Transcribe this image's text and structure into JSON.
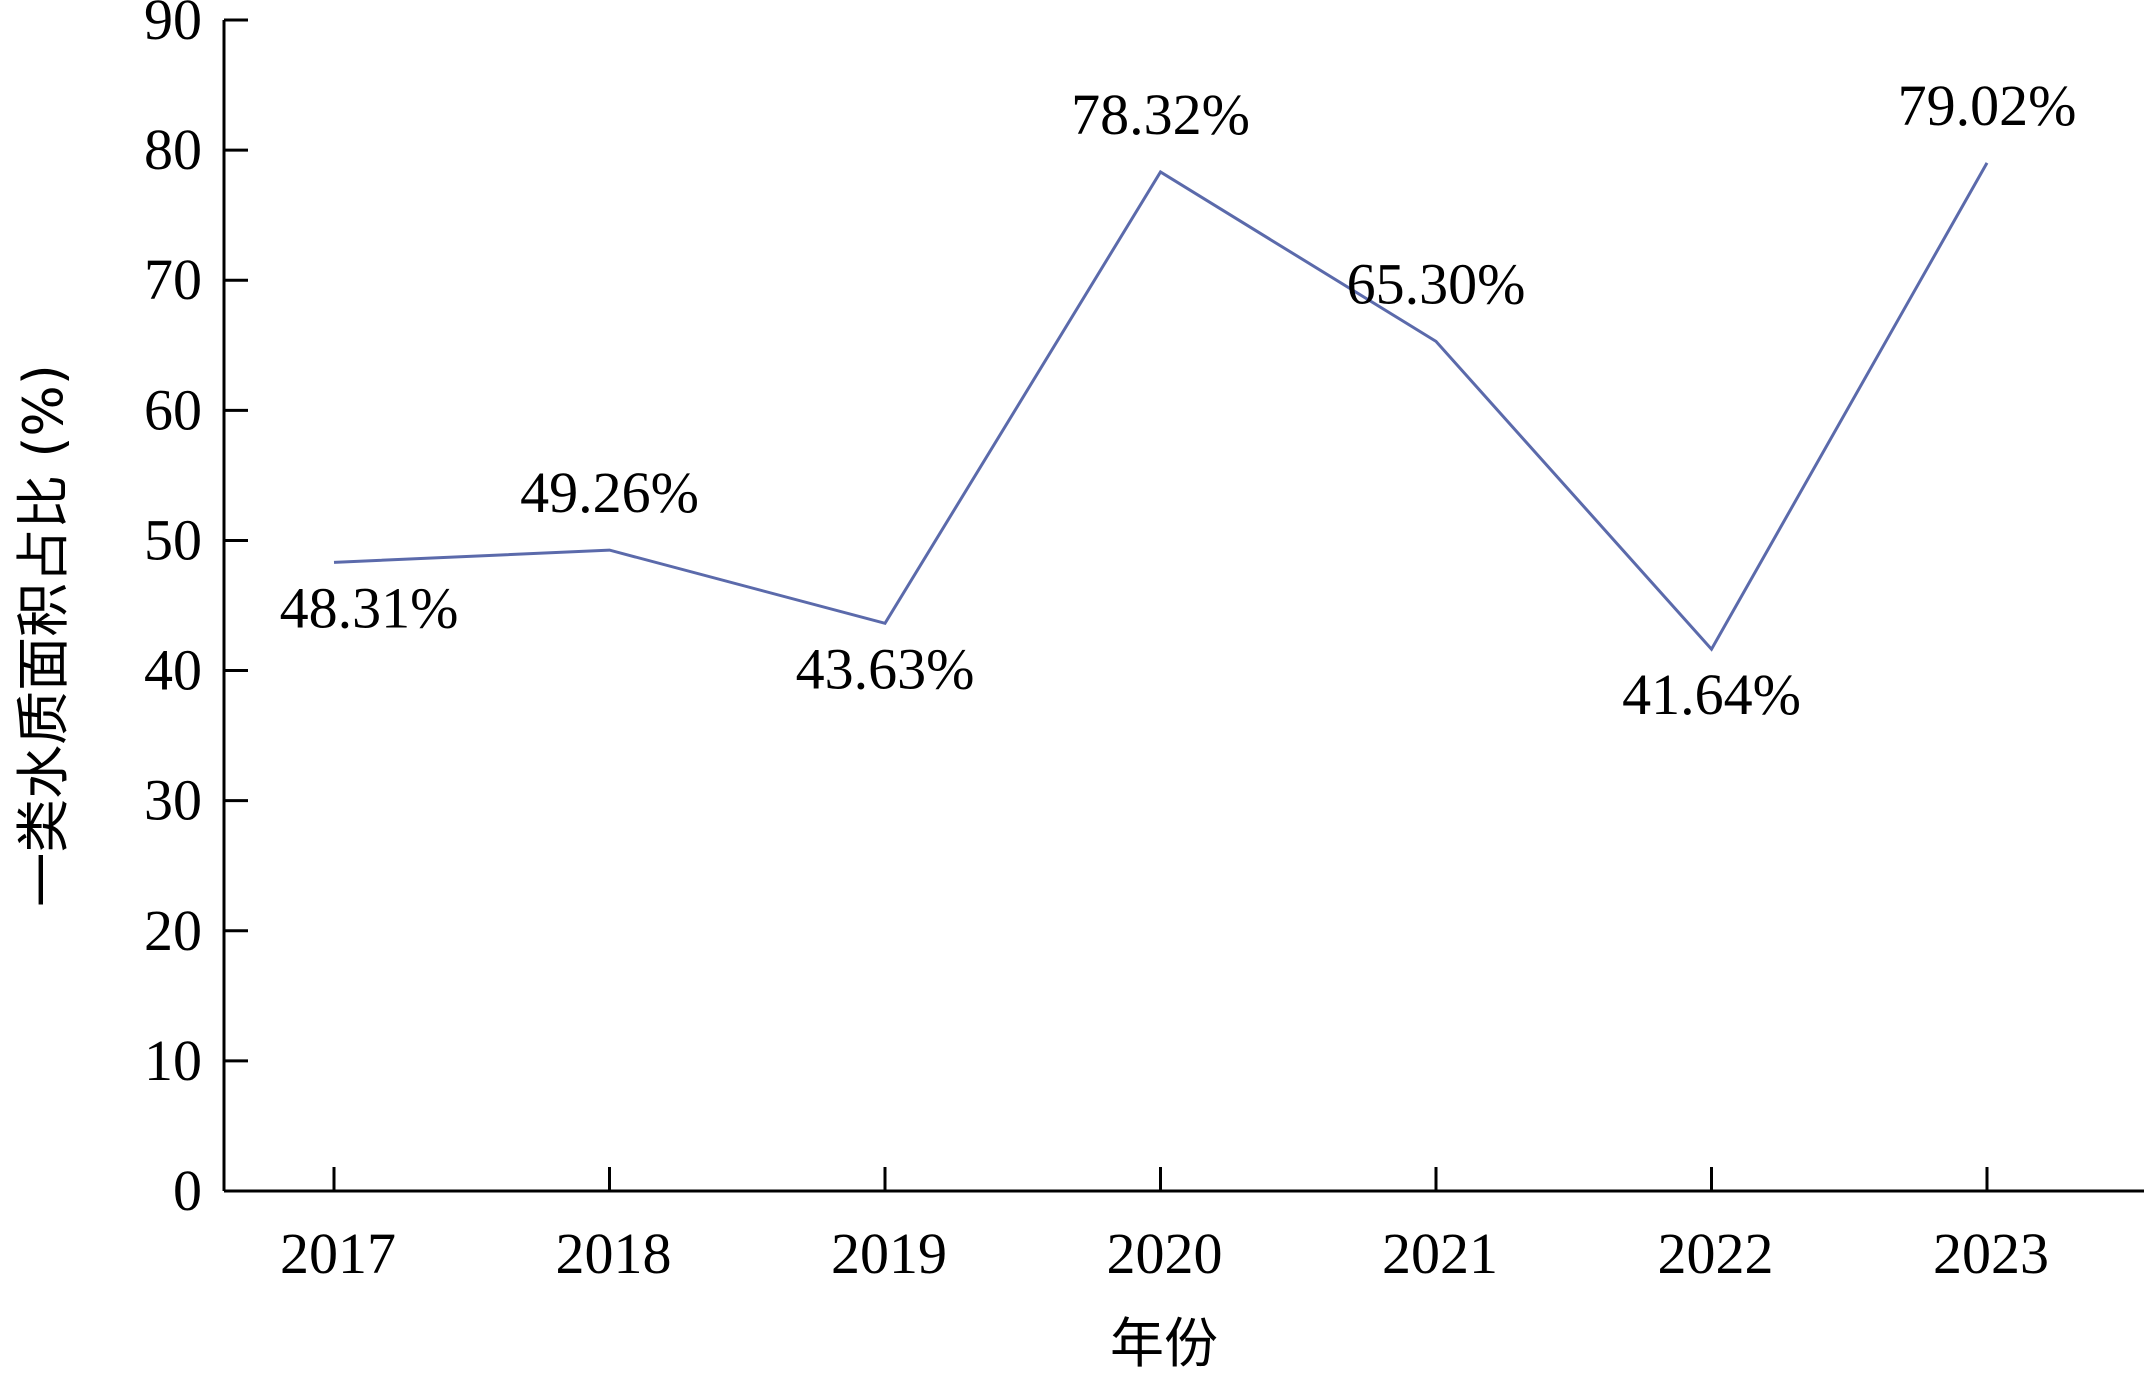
{
  "chart_data": {
    "type": "line",
    "title": "",
    "xlabel": "年份",
    "ylabel": "一类水质面积占比 (%)",
    "x": [
      "2017",
      "2018",
      "2019",
      "2020",
      "2021",
      "2022",
      "2023"
    ],
    "series": [
      {
        "values": [
          48.31,
          49.26,
          43.63,
          78.32,
          65.3,
          41.64,
          79.02
        ],
        "labels": [
          "48.31%",
          "49.26%",
          "43.63%",
          "78.32%",
          "65.30%",
          "41.64%",
          "79.02%"
        ],
        "color": "#5b6aab"
      }
    ],
    "ylim": [
      0,
      90
    ],
    "yticks": [
      "0",
      "10",
      "20",
      "30",
      "40",
      "50",
      "60",
      "70",
      "80",
      "90"
    ],
    "grid": false,
    "legend": "none"
  }
}
